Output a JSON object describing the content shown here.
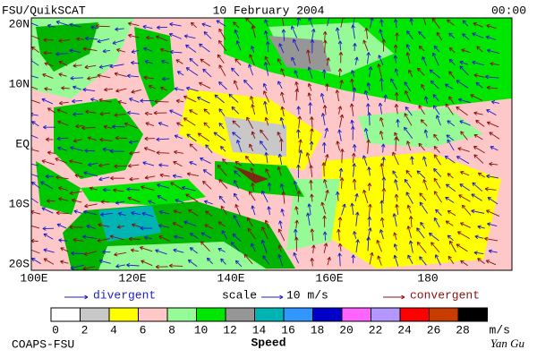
{
  "header": {
    "left": "FSU/QuikSCAT",
    "center": "10 February 2004",
    "right": "00:00"
  },
  "map": {
    "lat_labels": [
      "20N",
      "10N",
      "EQ",
      "10S",
      "20S"
    ],
    "lon_labels": [
      "100E",
      "120E",
      "140E",
      "160E",
      "180"
    ]
  },
  "legend": {
    "divergent": "divergent",
    "scale": "scale",
    "scale_value": "10 m/s",
    "convergent": "convergent",
    "divergent_color": "#1c1cc8",
    "convergent_color": "#8b1010"
  },
  "colorbar": {
    "ticks": [
      0,
      2,
      4,
      6,
      8,
      10,
      12,
      14,
      16,
      18,
      20,
      22,
      24,
      26,
      28
    ],
    "unit": "m/s",
    "label": "Speed",
    "colors": [
      "#ffffff",
      "#c8c8c8",
      "#ffff00",
      "#ffc8c8",
      "#96fa96",
      "#00e600",
      "#969696",
      "#00b4b4",
      "#3296ff",
      "#0000c8",
      "#ff64ff",
      "#b496ff",
      "#ff0000",
      "#c83c00",
      "#000000"
    ]
  },
  "footer": {
    "left": "COAPS-FSU",
    "right": "Yan Gu"
  }
}
